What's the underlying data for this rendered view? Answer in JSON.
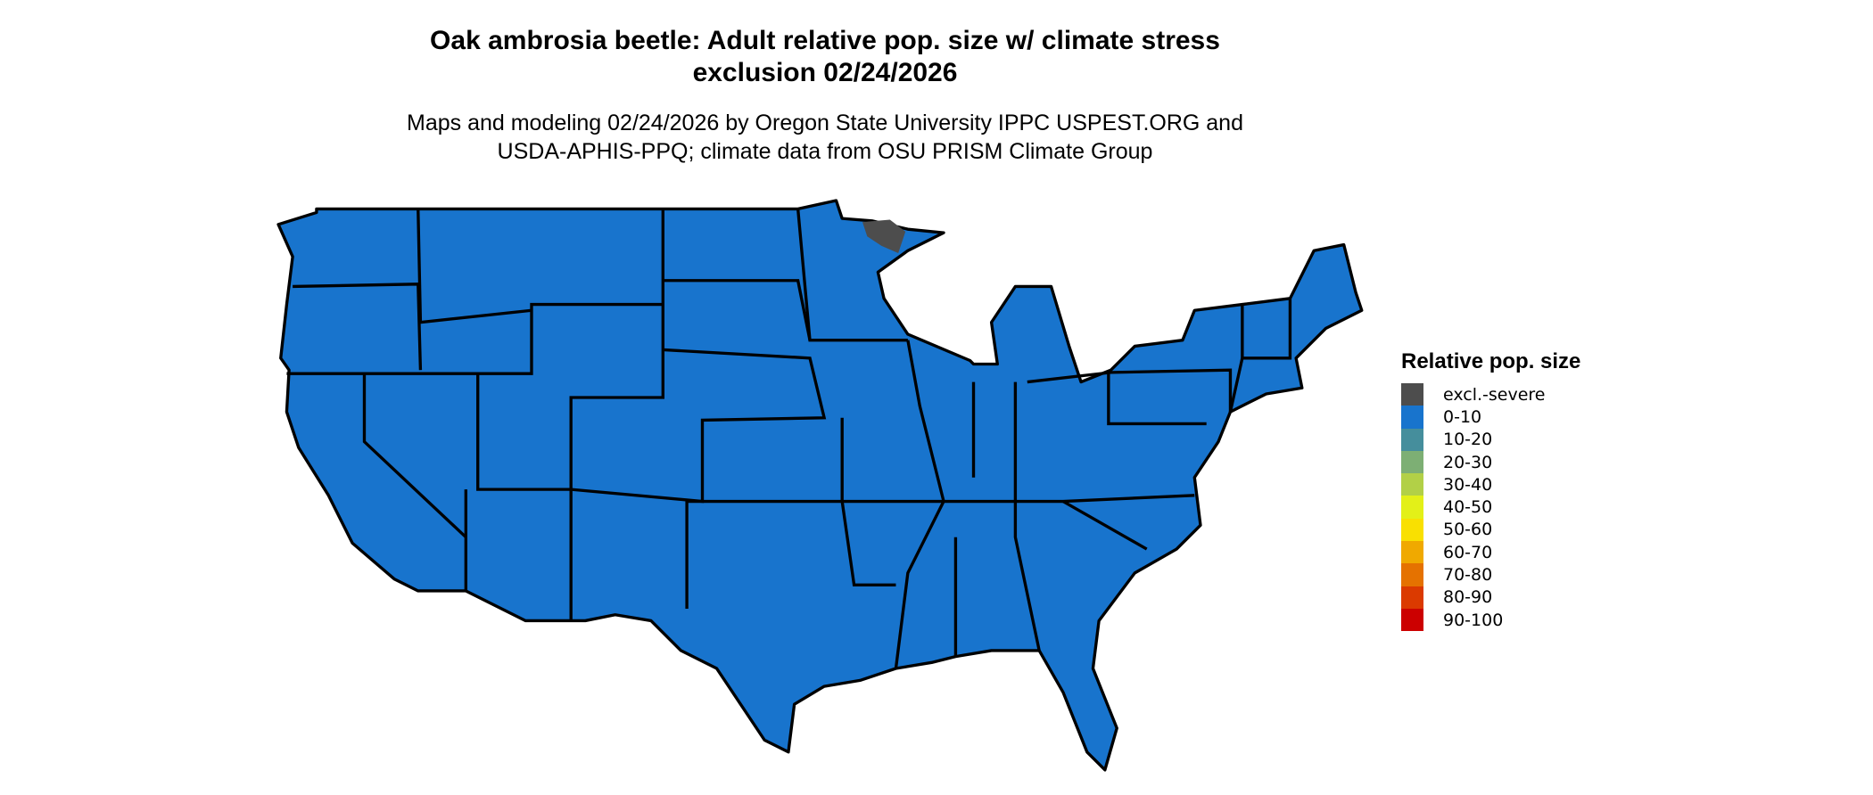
{
  "title": {
    "line1": "Oak ambrosia beetle: Adult relative pop. size w/ climate stress",
    "line2": "exclusion 02/24/2026"
  },
  "subtitle": {
    "line1": "Maps and modeling 02/24/2026 by Oregon State University IPPC USPEST.ORG and",
    "line2": "USDA-APHIS-PPQ; climate data from OSU PRISM Climate Group"
  },
  "map": {
    "region": "Contiguous United States",
    "dominant_class": "0-10",
    "fill_color": "#1874CD",
    "excluded_color": "#4D4D4D",
    "excluded_area": "northeastern Minnesota near Lake Superior"
  },
  "legend": {
    "title": "Relative pop. size",
    "items": [
      {
        "label": "excl.-severe",
        "color": "#4D4D4D"
      },
      {
        "label": "0-10",
        "color": "#1874CD"
      },
      {
        "label": "10-20",
        "color": "#458E9C"
      },
      {
        "label": "20-30",
        "color": "#7DAF74"
      },
      {
        "label": "30-40",
        "color": "#B2D047"
      },
      {
        "label": "40-50",
        "color": "#E3F018"
      },
      {
        "label": "50-60",
        "color": "#F9E001"
      },
      {
        "label": "60-70",
        "color": "#F0A900"
      },
      {
        "label": "70-80",
        "color": "#E57200"
      },
      {
        "label": "80-90",
        "color": "#DB3A00"
      },
      {
        "label": "90-100",
        "color": "#CC0000"
      }
    ]
  }
}
